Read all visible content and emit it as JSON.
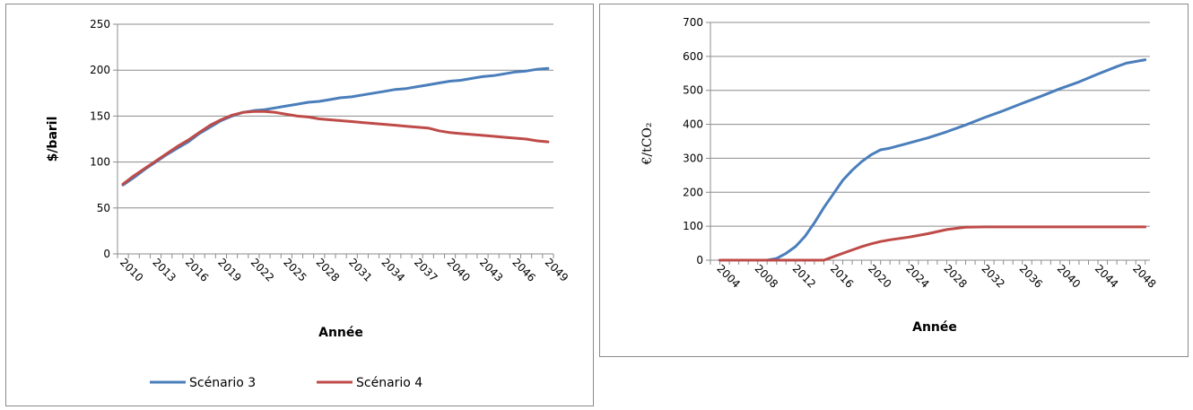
{
  "chart_data": [
    {
      "type": "line",
      "title": "",
      "xlabel": "Année",
      "ylabel": "$/baril",
      "ylim": [
        0,
        250
      ],
      "yticks": [
        0,
        50,
        100,
        150,
        200,
        250
      ],
      "x_tick_labels": [
        "2010",
        "2013",
        "2016",
        "2019",
        "2022",
        "2025",
        "2028",
        "2031",
        "2034",
        "2037",
        "2040",
        "2043",
        "2046",
        "2049"
      ],
      "grid": "horizontal",
      "legend_position": "bottom",
      "x": [
        2010,
        2011,
        2012,
        2013,
        2014,
        2015,
        2016,
        2017,
        2018,
        2019,
        2020,
        2021,
        2022,
        2023,
        2024,
        2025,
        2026,
        2027,
        2028,
        2029,
        2030,
        2031,
        2032,
        2033,
        2034,
        2035,
        2036,
        2037,
        2038,
        2039,
        2040,
        2041,
        2042,
        2043,
        2044,
        2045,
        2046,
        2047,
        2048,
        2049
      ],
      "series": [
        {
          "name": "Scénario 3",
          "color": "#4a7ebb",
          "values": [
            75,
            83,
            92,
            100,
            108,
            115,
            122,
            131,
            138,
            145,
            150,
            154,
            156,
            157,
            159,
            161,
            163,
            165,
            166,
            168,
            170,
            171,
            173,
            175,
            177,
            179,
            180,
            182,
            184,
            186,
            188,
            189,
            191,
            193,
            194,
            196,
            198,
            199,
            201,
            202
          ]
        },
        {
          "name": "Scénario 4",
          "color": "#be4b48",
          "values": [
            76,
            85,
            93,
            101,
            109,
            117,
            124,
            132,
            140,
            146,
            151,
            154,
            155,
            155,
            154,
            152,
            150,
            149,
            147,
            146,
            145,
            144,
            143,
            142,
            141,
            140,
            139,
            138,
            137,
            134,
            132,
            131,
            130,
            129,
            128,
            127,
            126,
            125,
            123,
            122
          ]
        }
      ]
    },
    {
      "type": "line",
      "title": "",
      "xlabel": "Année",
      "ylabel": "€/tCO₂",
      "ylim": [
        0,
        700
      ],
      "yticks": [
        0,
        100,
        200,
        300,
        400,
        500,
        600,
        700
      ],
      "x_tick_labels": [
        "2004",
        "2008",
        "2012",
        "2016",
        "2020",
        "2024",
        "2028",
        "2032",
        "2036",
        "2040",
        "2044",
        "2048"
      ],
      "grid": "horizontal",
      "legend_position": "none",
      "x": [
        2004,
        2006,
        2008,
        2009,
        2010,
        2011,
        2012,
        2013,
        2014,
        2015,
        2016,
        2017,
        2018,
        2019,
        2020,
        2021,
        2022,
        2024,
        2026,
        2028,
        2030,
        2032,
        2034,
        2036,
        2038,
        2040,
        2042,
        2044,
        2046,
        2047,
        2048,
        2049
      ],
      "series": [
        {
          "color": "#4a7ebb",
          "values": [
            0,
            0,
            0,
            0,
            5,
            20,
            40,
            70,
            110,
            155,
            195,
            235,
            265,
            290,
            310,
            325,
            330,
            345,
            360,
            378,
            398,
            420,
            440,
            462,
            483,
            505,
            525,
            548,
            570,
            580,
            585,
            590
          ]
        },
        {
          "color": "#be4b48",
          "values": [
            0,
            0,
            0,
            0,
            0,
            0,
            0,
            0,
            0,
            0,
            10,
            20,
            30,
            40,
            48,
            55,
            60,
            68,
            78,
            90,
            97,
            98,
            98,
            98,
            98,
            98,
            98,
            98,
            98,
            98,
            98,
            98
          ]
        }
      ]
    }
  ]
}
